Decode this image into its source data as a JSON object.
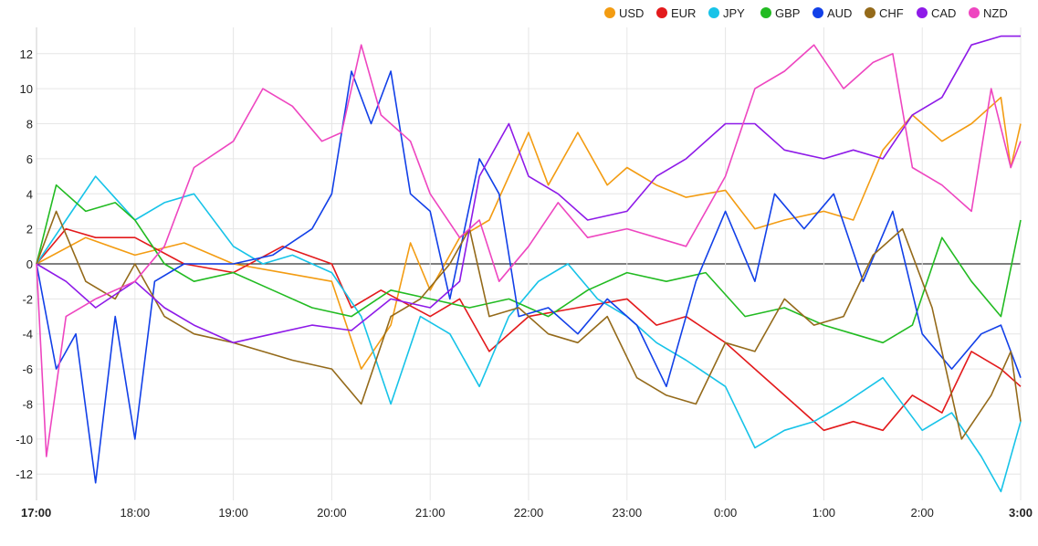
{
  "chart_data": {
    "type": "line",
    "title": "",
    "xlabel": "",
    "ylabel": "",
    "x_ticks": [
      "17:00",
      "18:00",
      "19:00",
      "20:00",
      "21:00",
      "22:00",
      "23:00",
      "0:00",
      "1:00",
      "2:00",
      "3:00"
    ],
    "x_ticks_bold": [
      "17:00",
      "3:00"
    ],
    "xlim": [
      0,
      10
    ],
    "ylim": [
      -13.5,
      13.5
    ],
    "y_ticks": [
      -12,
      -10,
      -8,
      -6,
      -4,
      -2,
      0,
      2,
      4,
      6,
      8,
      10,
      12
    ],
    "grid": true,
    "legend_position": "top-right",
    "series": [
      {
        "name": "USD",
        "color": "#f39c12",
        "points": [
          [
            0,
            0
          ],
          [
            0.5,
            1.5
          ],
          [
            1,
            0.5
          ],
          [
            1.5,
            1.2
          ],
          [
            2,
            0
          ],
          [
            2.5,
            -0.5
          ],
          [
            3,
            -1
          ],
          [
            3.3,
            -6
          ],
          [
            3.6,
            -3.5
          ],
          [
            3.8,
            1.2
          ],
          [
            4,
            -1.5
          ],
          [
            4.3,
            1.5
          ],
          [
            4.6,
            2.5
          ],
          [
            5,
            7.5
          ],
          [
            5.2,
            4.5
          ],
          [
            5.5,
            7.5
          ],
          [
            5.8,
            4.5
          ],
          [
            6,
            5.5
          ],
          [
            6.3,
            4.5
          ],
          [
            6.6,
            3.8
          ],
          [
            7,
            4.2
          ],
          [
            7.3,
            2
          ],
          [
            7.6,
            2.5
          ],
          [
            8,
            3
          ],
          [
            8.3,
            2.5
          ],
          [
            8.6,
            6.5
          ],
          [
            8.9,
            8.5
          ],
          [
            9.2,
            7
          ],
          [
            9.5,
            8
          ],
          [
            9.8,
            9.5
          ],
          [
            9.9,
            5.5
          ],
          [
            10,
            8
          ]
        ]
      },
      {
        "name": "EUR",
        "color": "#e31a1c",
        "points": [
          [
            0,
            0
          ],
          [
            0.3,
            2
          ],
          [
            0.6,
            1.5
          ],
          [
            1,
            1.5
          ],
          [
            1.5,
            0
          ],
          [
            2,
            -0.5
          ],
          [
            2.5,
            1
          ],
          [
            3,
            0
          ],
          [
            3.2,
            -2.5
          ],
          [
            3.5,
            -1.5
          ],
          [
            4,
            -3
          ],
          [
            4.3,
            -2
          ],
          [
            4.6,
            -5
          ],
          [
            5,
            -3
          ],
          [
            5.5,
            -2.5
          ],
          [
            6,
            -2
          ],
          [
            6.3,
            -3.5
          ],
          [
            6.6,
            -3
          ],
          [
            7,
            -4.5
          ],
          [
            7.3,
            -6
          ],
          [
            7.7,
            -8
          ],
          [
            8,
            -9.5
          ],
          [
            8.3,
            -9
          ],
          [
            8.6,
            -9.5
          ],
          [
            8.9,
            -7.5
          ],
          [
            9.2,
            -8.5
          ],
          [
            9.5,
            -5
          ],
          [
            9.8,
            -6
          ],
          [
            10,
            -7
          ]
        ]
      },
      {
        "name": "JPY",
        "color": "#17c3e8",
        "points": [
          [
            0,
            0
          ],
          [
            0.3,
            2.5
          ],
          [
            0.6,
            5
          ],
          [
            1,
            2.5
          ],
          [
            1.3,
            3.5
          ],
          [
            1.6,
            4
          ],
          [
            2,
            1
          ],
          [
            2.3,
            0
          ],
          [
            2.6,
            0.5
          ],
          [
            3,
            -0.5
          ],
          [
            3.3,
            -3
          ],
          [
            3.6,
            -8
          ],
          [
            3.9,
            -3
          ],
          [
            4.2,
            -4
          ],
          [
            4.5,
            -7
          ],
          [
            4.8,
            -3
          ],
          [
            5.1,
            -1
          ],
          [
            5.4,
            0
          ],
          [
            5.7,
            -2
          ],
          [
            6,
            -3
          ],
          [
            6.3,
            -4.5
          ],
          [
            6.6,
            -5.5
          ],
          [
            7,
            -7
          ],
          [
            7.3,
            -10.5
          ],
          [
            7.6,
            -9.5
          ],
          [
            7.9,
            -9
          ],
          [
            8.2,
            -8
          ],
          [
            8.6,
            -6.5
          ],
          [
            9,
            -9.5
          ],
          [
            9.3,
            -8.5
          ],
          [
            9.6,
            -11
          ],
          [
            9.8,
            -13
          ],
          [
            10,
            -9
          ]
        ]
      },
      {
        "name": "GBP",
        "color": "#22bb22",
        "points": [
          [
            0,
            0
          ],
          [
            0.2,
            4.5
          ],
          [
            0.5,
            3
          ],
          [
            0.8,
            3.5
          ],
          [
            1,
            2.5
          ],
          [
            1.3,
            0
          ],
          [
            1.6,
            -1
          ],
          [
            2,
            -0.5
          ],
          [
            2.4,
            -1.5
          ],
          [
            2.8,
            -2.5
          ],
          [
            3.2,
            -3
          ],
          [
            3.6,
            -1.5
          ],
          [
            4,
            -2
          ],
          [
            4.4,
            -2.5
          ],
          [
            4.8,
            -2
          ],
          [
            5.2,
            -3
          ],
          [
            5.6,
            -1.5
          ],
          [
            6,
            -0.5
          ],
          [
            6.4,
            -1
          ],
          [
            6.8,
            -0.5
          ],
          [
            7.2,
            -3
          ],
          [
            7.6,
            -2.5
          ],
          [
            8,
            -3.5
          ],
          [
            8.3,
            -4
          ],
          [
            8.6,
            -4.5
          ],
          [
            8.9,
            -3.5
          ],
          [
            9.2,
            1.5
          ],
          [
            9.5,
            -1
          ],
          [
            9.8,
            -3
          ],
          [
            10,
            2.5
          ]
        ]
      },
      {
        "name": "AUD",
        "color": "#1240e8",
        "points": [
          [
            0,
            0
          ],
          [
            0.2,
            -6
          ],
          [
            0.4,
            -4
          ],
          [
            0.6,
            -12.5
          ],
          [
            0.8,
            -3
          ],
          [
            1,
            -10
          ],
          [
            1.2,
            -1
          ],
          [
            1.5,
            0
          ],
          [
            2,
            0
          ],
          [
            2.4,
            0.5
          ],
          [
            2.8,
            2
          ],
          [
            3,
            4
          ],
          [
            3.2,
            11
          ],
          [
            3.4,
            8
          ],
          [
            3.6,
            11
          ],
          [
            3.8,
            4
          ],
          [
            4,
            3
          ],
          [
            4.2,
            -2
          ],
          [
            4.5,
            6
          ],
          [
            4.7,
            4
          ],
          [
            4.9,
            -3
          ],
          [
            5.2,
            -2.5
          ],
          [
            5.5,
            -4
          ],
          [
            5.8,
            -2
          ],
          [
            6.1,
            -3.5
          ],
          [
            6.4,
            -7
          ],
          [
            6.7,
            -1
          ],
          [
            7,
            3
          ],
          [
            7.3,
            -1
          ],
          [
            7.5,
            4
          ],
          [
            7.8,
            2
          ],
          [
            8.1,
            4
          ],
          [
            8.4,
            -1
          ],
          [
            8.7,
            3
          ],
          [
            9,
            -4
          ],
          [
            9.3,
            -6
          ],
          [
            9.6,
            -4
          ],
          [
            9.8,
            -3.5
          ],
          [
            10,
            -6.5
          ]
        ]
      },
      {
        "name": "CHF",
        "color": "#946a1a",
        "points": [
          [
            0,
            0
          ],
          [
            0.2,
            3
          ],
          [
            0.5,
            -1
          ],
          [
            0.8,
            -2
          ],
          [
            1,
            0
          ],
          [
            1.3,
            -3
          ],
          [
            1.6,
            -4
          ],
          [
            2,
            -4.5
          ],
          [
            2.3,
            -5
          ],
          [
            2.6,
            -5.5
          ],
          [
            3,
            -6
          ],
          [
            3.3,
            -8
          ],
          [
            3.6,
            -3
          ],
          [
            3.9,
            -2
          ],
          [
            4.2,
            0
          ],
          [
            4.4,
            2
          ],
          [
            4.6,
            -3
          ],
          [
            4.9,
            -2.5
          ],
          [
            5.2,
            -4
          ],
          [
            5.5,
            -4.5
          ],
          [
            5.8,
            -3
          ],
          [
            6.1,
            -6.5
          ],
          [
            6.4,
            -7.5
          ],
          [
            6.7,
            -8
          ],
          [
            7,
            -4.5
          ],
          [
            7.3,
            -5
          ],
          [
            7.6,
            -2
          ],
          [
            7.9,
            -3.5
          ],
          [
            8.2,
            -3
          ],
          [
            8.5,
            0.5
          ],
          [
            8.8,
            2
          ],
          [
            9.1,
            -2.5
          ],
          [
            9.4,
            -10
          ],
          [
            9.7,
            -7.5
          ],
          [
            9.9,
            -5
          ],
          [
            10,
            -9
          ]
        ]
      },
      {
        "name": "CAD",
        "color": "#8e1ae8",
        "points": [
          [
            0,
            0
          ],
          [
            0.3,
            -1
          ],
          [
            0.6,
            -2.5
          ],
          [
            1,
            -1
          ],
          [
            1.3,
            -2.5
          ],
          [
            1.6,
            -3.5
          ],
          [
            2,
            -4.5
          ],
          [
            2.4,
            -4
          ],
          [
            2.8,
            -3.5
          ],
          [
            3.2,
            -3.8
          ],
          [
            3.6,
            -2
          ],
          [
            4,
            -2.5
          ],
          [
            4.3,
            -1
          ],
          [
            4.5,
            5
          ],
          [
            4.8,
            8
          ],
          [
            5,
            5
          ],
          [
            5.3,
            4
          ],
          [
            5.6,
            2.5
          ],
          [
            6,
            3
          ],
          [
            6.3,
            5
          ],
          [
            6.6,
            6
          ],
          [
            7,
            8
          ],
          [
            7.3,
            8
          ],
          [
            7.6,
            6.5
          ],
          [
            8,
            6
          ],
          [
            8.3,
            6.5
          ],
          [
            8.6,
            6
          ],
          [
            8.9,
            8.5
          ],
          [
            9.2,
            9.5
          ],
          [
            9.5,
            12.5
          ],
          [
            9.8,
            13
          ],
          [
            10,
            13
          ]
        ]
      },
      {
        "name": "NZD",
        "color": "#ee46c0",
        "points": [
          [
            0,
            0
          ],
          [
            0.1,
            -11
          ],
          [
            0.3,
            -3
          ],
          [
            0.6,
            -2
          ],
          [
            1,
            -1
          ],
          [
            1.3,
            1
          ],
          [
            1.6,
            5.5
          ],
          [
            2,
            7
          ],
          [
            2.3,
            10
          ],
          [
            2.6,
            9
          ],
          [
            2.9,
            7
          ],
          [
            3.1,
            7.5
          ],
          [
            3.3,
            12.5
          ],
          [
            3.5,
            8.5
          ],
          [
            3.8,
            7
          ],
          [
            4,
            4
          ],
          [
            4.3,
            1.5
          ],
          [
            4.5,
            2.5
          ],
          [
            4.7,
            -1
          ],
          [
            5,
            1
          ],
          [
            5.3,
            3.5
          ],
          [
            5.6,
            1.5
          ],
          [
            6,
            2
          ],
          [
            6.3,
            1.5
          ],
          [
            6.6,
            1
          ],
          [
            7,
            5
          ],
          [
            7.3,
            10
          ],
          [
            7.6,
            11
          ],
          [
            7.9,
            12.5
          ],
          [
            8.2,
            10
          ],
          [
            8.5,
            11.5
          ],
          [
            8.7,
            12
          ],
          [
            8.9,
            5.5
          ],
          [
            9.2,
            4.5
          ],
          [
            9.5,
            3
          ],
          [
            9.7,
            10
          ],
          [
            9.9,
            5.5
          ],
          [
            10,
            7
          ]
        ]
      }
    ]
  }
}
